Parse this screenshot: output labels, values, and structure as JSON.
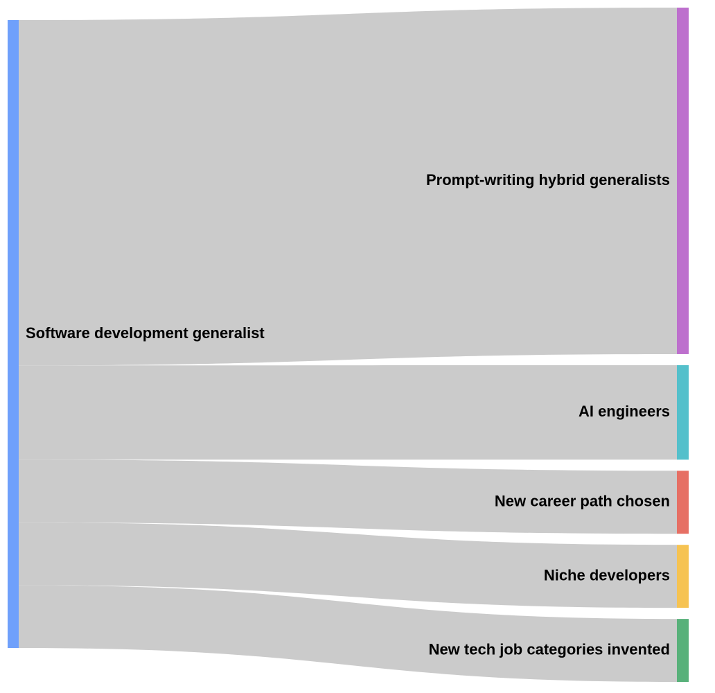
{
  "chart_data": {
    "type": "sankey",
    "source": {
      "label": "Software development generalist",
      "color": "#6fa0fb"
    },
    "targets": [
      {
        "label": "Prompt-writing hybrid generalists",
        "value": 55,
        "color": "#bd6fcd"
      },
      {
        "label": "AI engineers",
        "value": 15,
        "color": "#54c0cb"
      },
      {
        "label": "New career path chosen",
        "value": 10,
        "color": "#e66f64"
      },
      {
        "label": "Niche developers",
        "value": 10,
        "color": "#f6c352"
      },
      {
        "label": "New tech job categories invented",
        "value": 10,
        "color": "#58b17a"
      }
    ]
  }
}
